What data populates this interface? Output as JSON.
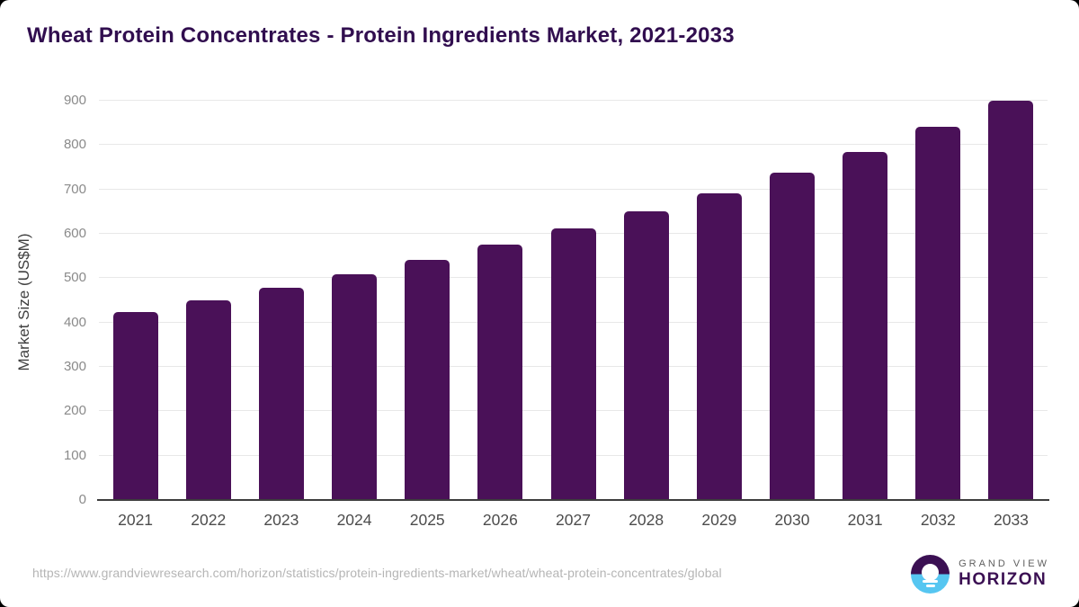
{
  "title": "Wheat Protein Concentrates - Protein Ingredients Market, 2021-2033",
  "chart_data": {
    "type": "bar",
    "title": "Wheat Protein Concentrates - Protein Ingredients Market, 2021-2033",
    "categories": [
      "2021",
      "2022",
      "2023",
      "2024",
      "2025",
      "2026",
      "2027",
      "2028",
      "2029",
      "2030",
      "2031",
      "2032",
      "2033"
    ],
    "values": [
      424,
      450,
      479,
      509,
      541,
      576,
      612,
      650,
      691,
      737,
      785,
      841,
      900
    ],
    "series_name": "Market Size",
    "xlabel": "",
    "ylabel": "Market Size (US$M)",
    "ylim": [
      0,
      900
    ],
    "ytick_interval": 100,
    "yticks": [
      0,
      100,
      200,
      300,
      400,
      500,
      600,
      700,
      800,
      900
    ],
    "grid": true,
    "legend": "none",
    "bar_color": "#4a1158"
  },
  "footer": {
    "source_url": "https://www.grandviewresearch.com/horizon/statistics/protein-ingredients-market/wheat/wheat-protein-concentrates/global",
    "logo": {
      "line1": "GRAND VIEW",
      "line2": "HORIZON",
      "icon": "horizon-sunrise-icon"
    }
  },
  "colors": {
    "bar": "#4a1158",
    "title_text": "#310e4f",
    "logo_purple": "#3b1053",
    "logo_blue": "#56c6f1",
    "axis_line": "#3d3d3d",
    "gridline": "#e8e8e8"
  }
}
